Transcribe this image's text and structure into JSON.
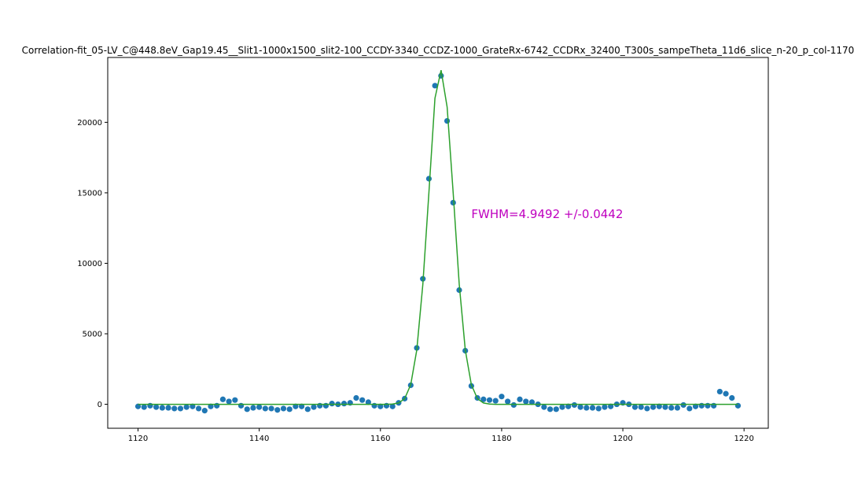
{
  "chart_data": {
    "type": "scatter",
    "title": "Correlation-fit_05-LV_C@448.8eV_Gap19.45__Slit1-1000x1500_slit2-100_CCDY-3340_CCDZ-1000_GrateRx-6742_CCDRx_32400_T300s_sampeTheta_11d6_slice_n-20_p_col-1170",
    "xlabel": "",
    "ylabel": "",
    "xlim": [
      1115,
      1224
    ],
    "ylim": [
      -1700,
      24600
    ],
    "xticks": [
      1120,
      1140,
      1160,
      1180,
      1200,
      1220
    ],
    "yticks": [
      0,
      5000,
      10000,
      15000,
      20000
    ],
    "grid": false,
    "annotation": {
      "text": "FWHM=4.9492 +/-0.0442",
      "x": 1175,
      "y": 13500,
      "color": "#bf00bf"
    },
    "x_start": 1120,
    "series": [
      {
        "kind": "scatter",
        "color": "#1f77b4",
        "values": [
          -150,
          -200,
          -100,
          -200,
          -250,
          -250,
          -300,
          -300,
          -200,
          -150,
          -300,
          -450,
          -150,
          -100,
          350,
          200,
          300,
          -100,
          -350,
          -250,
          -200,
          -300,
          -300,
          -400,
          -300,
          -350,
          -150,
          -150,
          -350,
          -200,
          -100,
          -100,
          50,
          0,
          50,
          100,
          450,
          300,
          150,
          -100,
          -150,
          -100,
          -150,
          100,
          400,
          1350,
          4000,
          8900,
          16000,
          22600,
          23300,
          20100,
          14300,
          8100,
          3800,
          1300,
          450,
          350,
          300,
          250,
          550,
          200,
          -50,
          350,
          200,
          150,
          0,
          -200,
          -350,
          -350,
          -200,
          -150,
          -50,
          -200,
          -250,
          -250,
          -300,
          -200,
          -150,
          0,
          100,
          0,
          -200,
          -200,
          -300,
          -200,
          -150,
          -200,
          -250,
          -250,
          -50,
          -300,
          -150,
          -100,
          -100,
          -100,
          900,
          750,
          450,
          -100
        ]
      },
      {
        "kind": "line",
        "color": "#2ca02c",
        "values": [
          0,
          0,
          0,
          0,
          0,
          0,
          0,
          0,
          0,
          0,
          0,
          0,
          0,
          0,
          0,
          0,
          0,
          0,
          0,
          0,
          0,
          0,
          0,
          0,
          0,
          0,
          0,
          0,
          0,
          0,
          0,
          0,
          0,
          0,
          0,
          0,
          0,
          0,
          0,
          0,
          0,
          0,
          16,
          90,
          400,
          1390,
          3850,
          8500,
          14990,
          21700,
          23700,
          21080,
          14990,
          8500,
          3850,
          1390,
          400,
          90,
          16,
          0,
          0,
          0,
          0,
          0,
          0,
          0,
          0,
          0,
          0,
          0,
          0,
          0,
          0,
          0,
          0,
          0,
          0,
          0,
          0,
          0,
          0,
          0,
          0,
          0,
          0,
          0,
          0,
          0,
          0,
          0,
          0,
          0,
          0,
          0,
          0,
          0,
          0,
          0,
          0,
          0
        ]
      }
    ]
  }
}
